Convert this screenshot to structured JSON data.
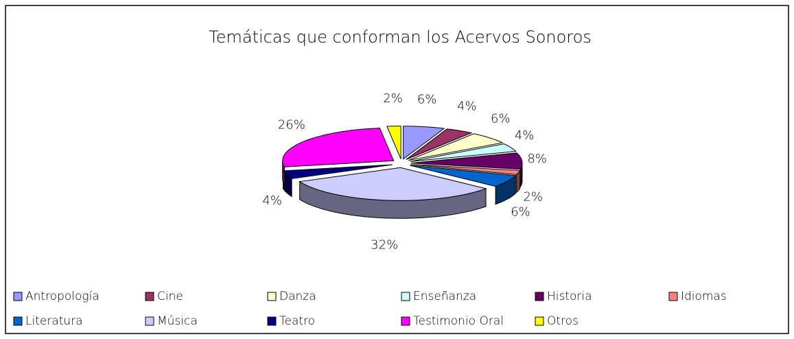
{
  "chart_data": {
    "type": "pie",
    "title": "Temáticas que conforman los Acervos Sonoros",
    "categories": [
      "Antropología",
      "Cine",
      "Danza",
      "Enseñanza",
      "Historia",
      "Idiomas",
      "Literatura",
      "Música",
      "Teatro",
      "Testimonio Oral",
      "Otros"
    ],
    "values": [
      6,
      4,
      6,
      4,
      8,
      2,
      6,
      32,
      4,
      26,
      2
    ],
    "value_labels": [
      "6%",
      "4%",
      "6%",
      "4%",
      "8%",
      "2%",
      "6%",
      "32%",
      "4%",
      "26%",
      "2%"
    ],
    "colors": [
      "#9999ff",
      "#993366",
      "#ffffcc",
      "#ccffff",
      "#660066",
      "#ff8080",
      "#0066cc",
      "#ccccff",
      "#000080",
      "#ff00ff",
      "#ffff00"
    ],
    "legend": "bottom"
  }
}
